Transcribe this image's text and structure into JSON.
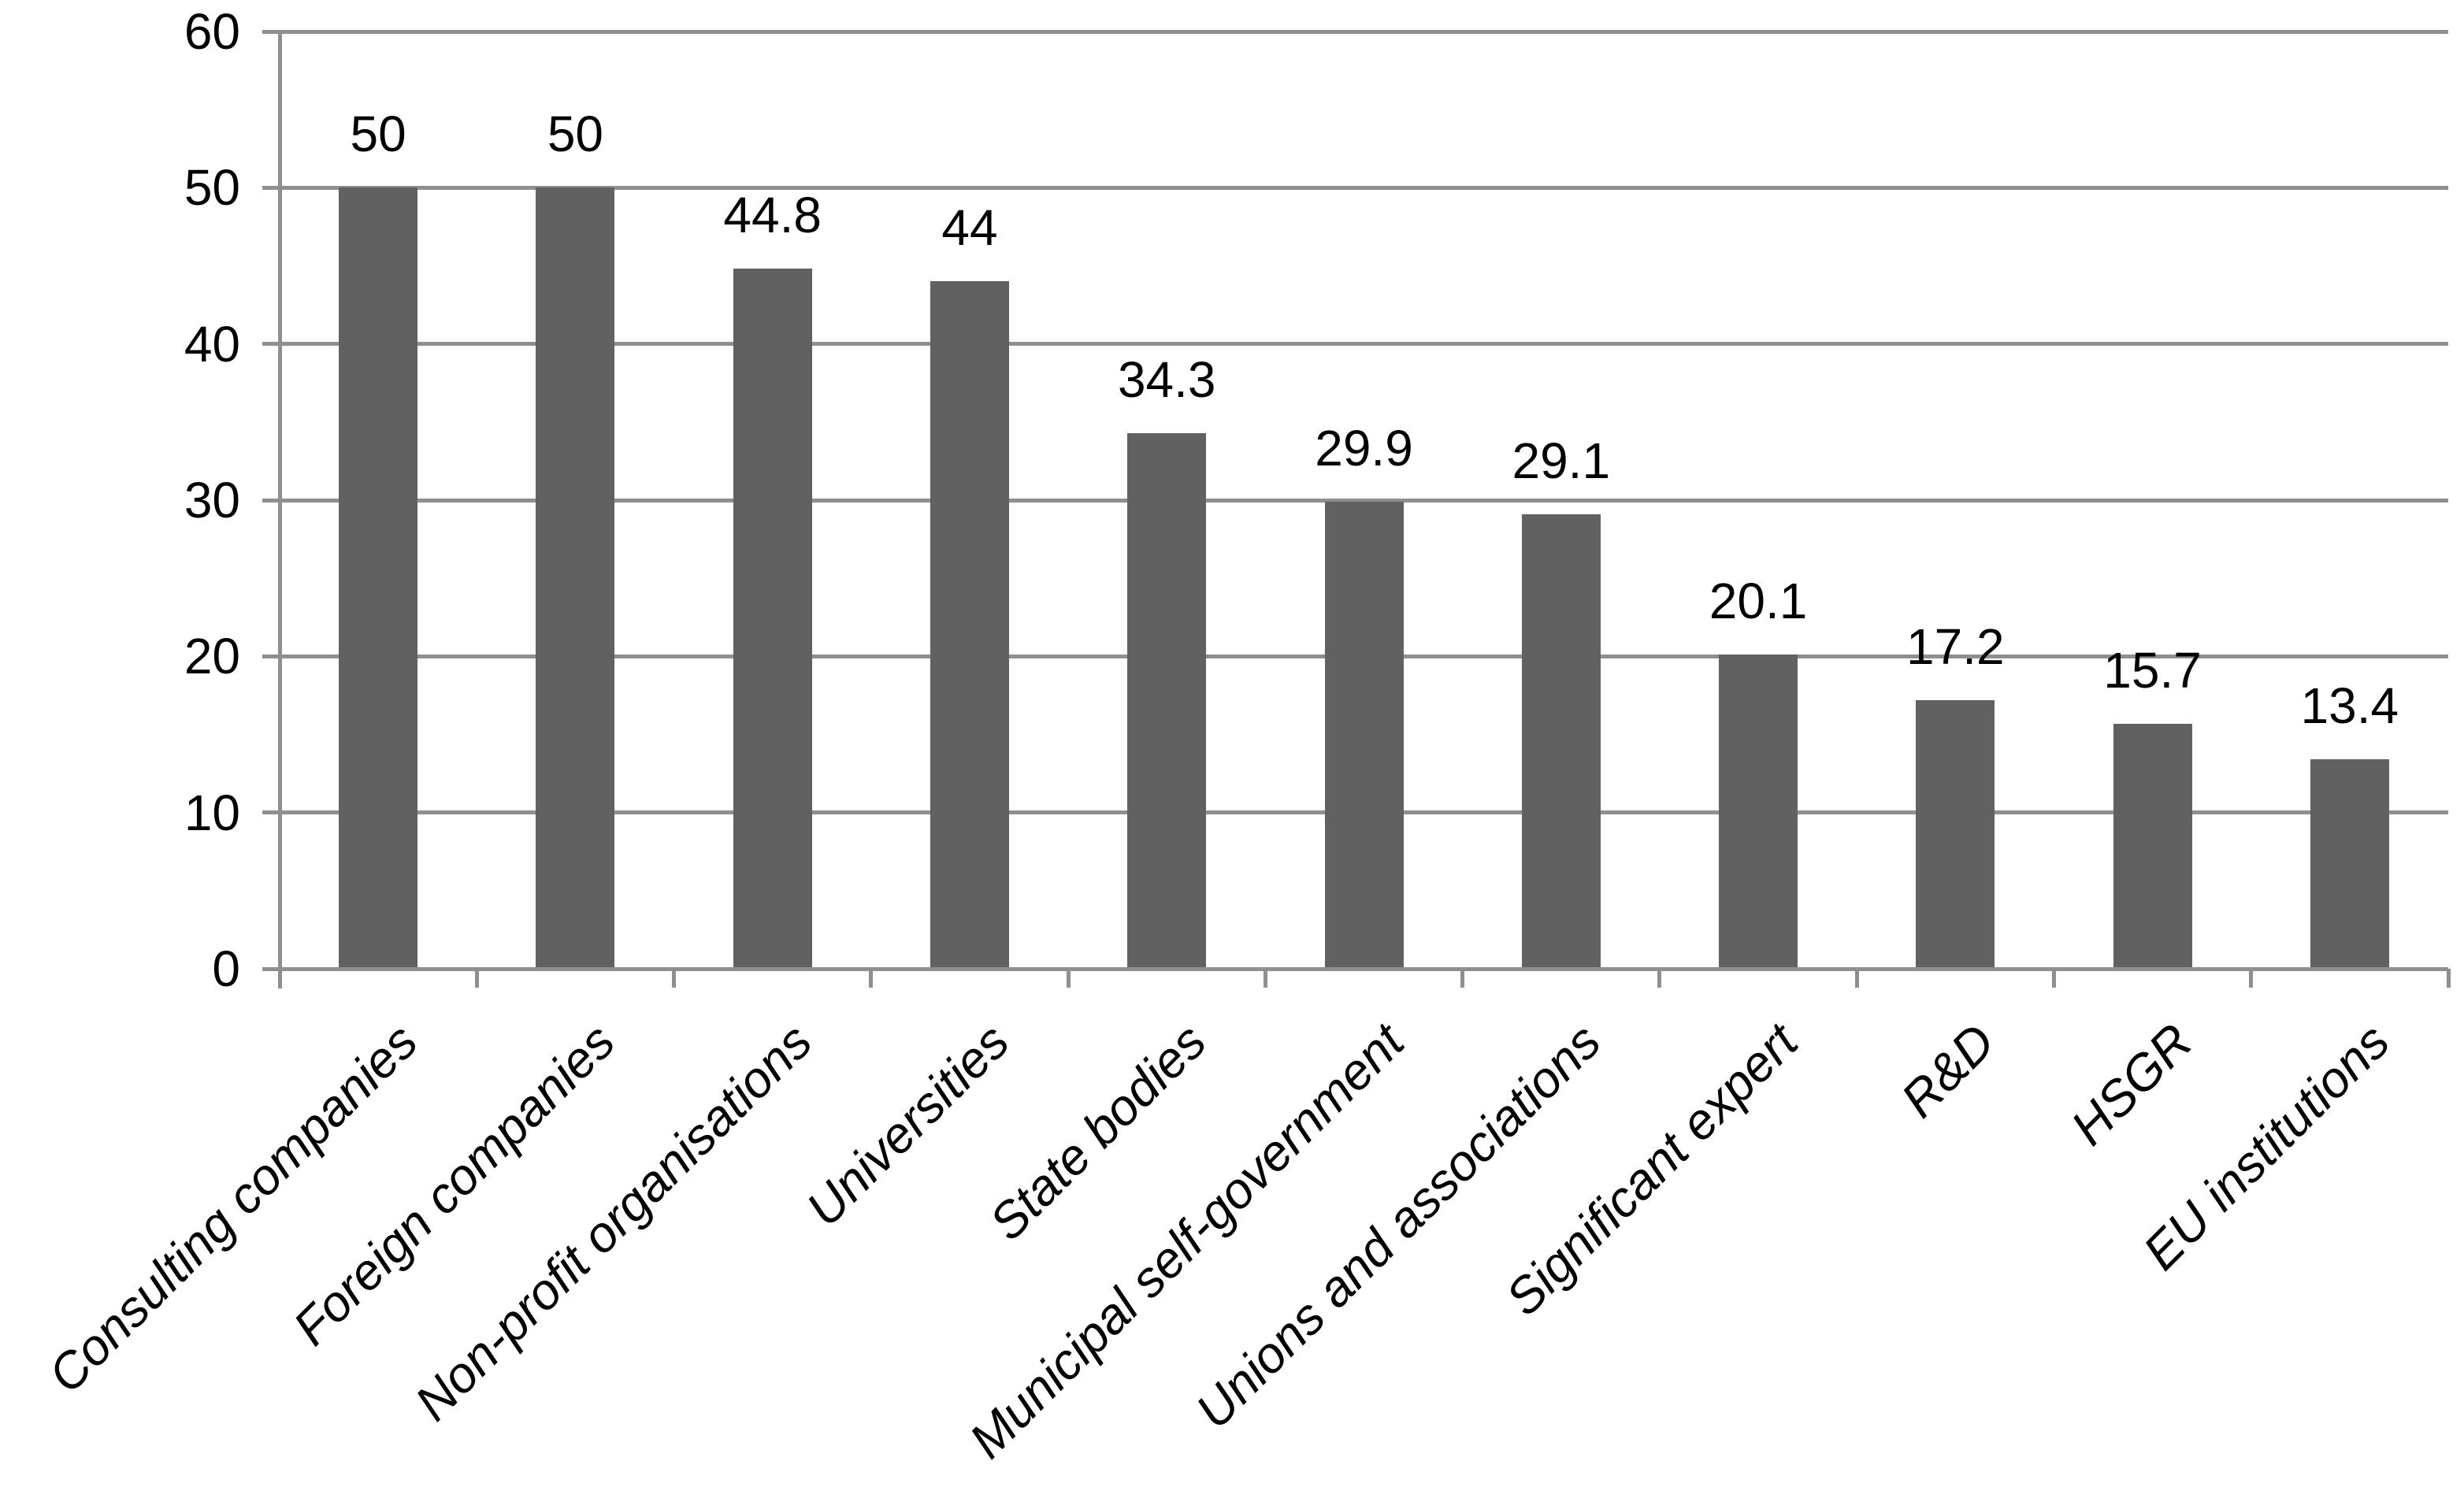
{
  "chart_data": {
    "type": "bar",
    "title": "",
    "xlabel": "",
    "ylabel": "",
    "categories": [
      "Consulting companies",
      "Foreign companies",
      "Non-profit organisations",
      "Universities",
      "State bodies",
      "Municipal self-government",
      "Unions and associations",
      "Significant expert",
      "R&D",
      "HSGR",
      "EU institutions"
    ],
    "values": [
      50,
      50,
      44.8,
      44,
      34.3,
      29.9,
      29.1,
      20.1,
      17.2,
      15.7,
      13.4
    ],
    "data_labels": [
      "50",
      "50",
      "44.8",
      "44",
      "34.3",
      "29.9",
      "29.1",
      "20.1",
      "17.2",
      "15.7",
      "13.4"
    ],
    "ylim": [
      0,
      60
    ],
    "ytick_interval": 10,
    "ytick_labels": [
      "0",
      "10",
      "20",
      "30",
      "40",
      "50",
      "60"
    ],
    "grid": "horizontal",
    "legend": "none",
    "series_name": "",
    "colors": {
      "bar": "#616161",
      "grid": "#8f8f8f",
      "axis": "#8f8f8f",
      "text": "#000000",
      "background": "#ffffff"
    }
  }
}
